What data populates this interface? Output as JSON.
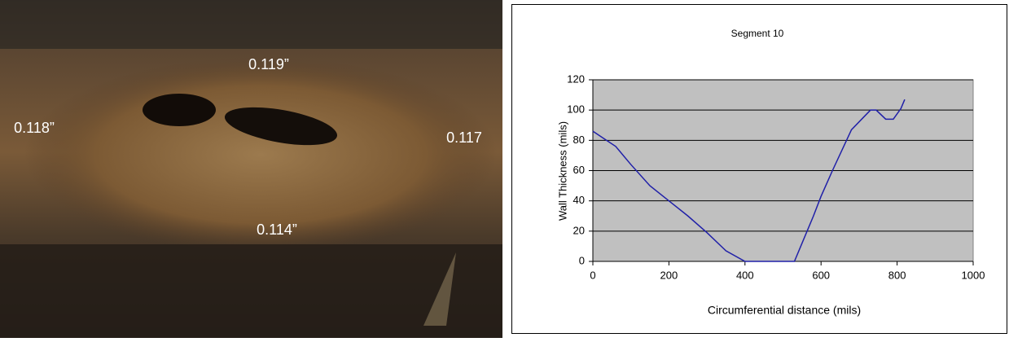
{
  "photo": {
    "labels": [
      "0.119”",
      "0.118”",
      "0.117",
      "0.114”"
    ]
  },
  "chart_data": {
    "type": "line",
    "title": "Segment 10",
    "x_label": "Circumferential distance (mils)",
    "y_label": "Wall Thickness (mils)",
    "x": [
      0,
      30,
      60,
      100,
      150,
      200,
      250,
      300,
      350,
      400,
      450,
      500,
      530,
      550,
      580,
      600,
      630,
      680,
      730,
      745,
      770,
      790,
      810,
      820
    ],
    "series": [
      {
        "color": "#2020a8",
        "values": [
          86,
          81,
          76,
          64,
          50,
          40,
          30,
          19,
          7,
          0,
          0,
          0,
          0,
          12,
          30,
          43,
          60,
          87,
          100,
          100,
          94,
          94,
          101,
          107
        ]
      }
    ],
    "xlim": [
      0,
      1000
    ],
    "ylim": [
      0,
      120
    ],
    "xticks": [
      0,
      200,
      400,
      600,
      800,
      1000
    ],
    "yticks": [
      0,
      20,
      40,
      60,
      80,
      100,
      120
    ],
    "grid": true,
    "plot_background": "#c0c0c0"
  }
}
